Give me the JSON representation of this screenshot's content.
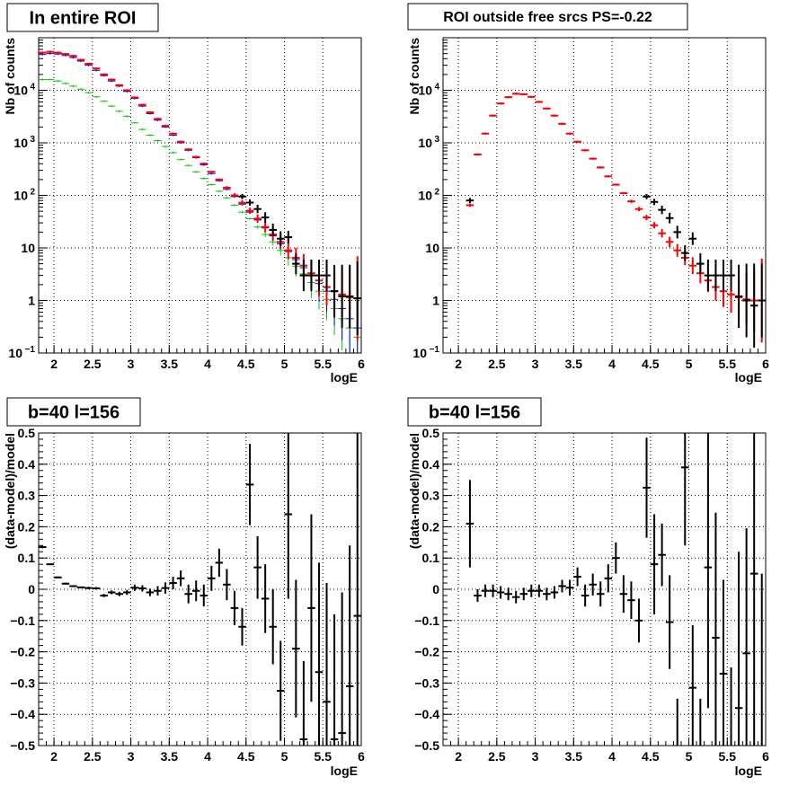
{
  "chart_data": [
    {
      "type": "scatter",
      "title": "In entire ROI",
      "xlabel": "logE",
      "ylabel": "Nb of counts",
      "xlim": [
        1.8,
        6.0
      ],
      "ylim": [
        0.1,
        100000
      ],
      "yscale": "log",
      "grid": true,
      "xticks": [
        "2",
        "2.5",
        "3",
        "3.5",
        "4",
        "4.5",
        "5",
        "5.5",
        "6"
      ],
      "yticks": [
        {
          "value": 0.1,
          "base": "10",
          "exp": "−1"
        },
        {
          "value": 1,
          "text": "1"
        },
        {
          "value": 10,
          "text": "10"
        },
        {
          "value": 100,
          "base": "10",
          "exp": "2"
        },
        {
          "value": 1000,
          "base": "10",
          "exp": "3"
        },
        {
          "value": 10000,
          "base": "10",
          "exp": "4"
        }
      ],
      "series": [
        {
          "color": "#00cc00",
          "width": 1,
          "x": [
            1.85,
            1.95,
            2.05,
            2.15,
            2.25,
            2.35,
            2.45,
            2.55,
            2.65,
            2.75,
            2.85,
            2.95,
            3.05,
            3.15,
            3.25,
            3.35,
            3.45,
            3.55,
            3.65,
            3.75,
            3.85,
            3.95,
            4.05,
            4.15,
            4.25,
            4.35,
            4.45,
            4.55,
            4.65,
            4.75,
            4.85,
            4.95,
            5.05,
            5.15,
            5.25,
            5.35,
            5.45,
            5.55,
            5.65,
            5.75,
            5.85,
            5.95
          ],
          "y": [
            16000,
            16000,
            15000,
            13500,
            12000,
            10500,
            9000,
            7500,
            6200,
            5000,
            4000,
            3200,
            2400,
            1800,
            1400,
            1100,
            850,
            650,
            480,
            370,
            280,
            210,
            160,
            120,
            90,
            65,
            48,
            36,
            25,
            18,
            13,
            9,
            6.5,
            4.5,
            3.2,
            2.2,
            1.5,
            1.05,
            0.7,
            0.45,
            0.3,
            0.2
          ],
          "yerr": [
            0.02,
            0.02,
            0.02,
            0.02,
            0.02,
            0.02,
            0.02,
            0.02,
            0.02,
            0.02,
            0.02,
            0.02,
            0.02,
            0.02,
            0.02,
            0.02,
            0.02,
            0.02,
            0.02,
            0.02,
            0.02,
            0.02,
            0.02,
            0.02,
            0.02,
            0.02,
            0.02,
            0.02,
            0.03,
            0.05,
            0.07,
            0.1,
            0.15,
            0.2,
            0.25,
            0.3,
            0.35,
            0.4,
            0.5,
            0.6,
            0.8,
            1.0
          ]
        },
        {
          "color": "#0000ff",
          "width": 1,
          "x": [
            1.85,
            1.95,
            2.05,
            2.15,
            2.25,
            2.35,
            2.45,
            2.55,
            2.65,
            2.75,
            2.85,
            2.95,
            3.05,
            3.15,
            3.25,
            3.35,
            3.45,
            3.55,
            3.65,
            3.75,
            3.85,
            3.95,
            4.05,
            4.15,
            4.25,
            4.35,
            4.45,
            4.55,
            4.65,
            4.75,
            4.85,
            4.95,
            5.05,
            5.15,
            5.25,
            5.35,
            5.45,
            5.55,
            5.65,
            5.75,
            5.85,
            5.95
          ],
          "y": [
            48000,
            50000,
            49000,
            46000,
            42000,
            36000,
            30000,
            24000,
            19000,
            15000,
            12000,
            9500,
            7000,
            5000,
            3600,
            2700,
            2000,
            1400,
            1000,
            720,
            520,
            380,
            260,
            190,
            130,
            95,
            68,
            48,
            34,
            24,
            17,
            12,
            8.5,
            6,
            4.2,
            3,
            2.1,
            1.5,
            1.05,
            0.7,
            0.45,
            0.3
          ],
          "yerr": [
            0.02,
            0.02,
            0.02,
            0.02,
            0.02,
            0.02,
            0.02,
            0.02,
            0.02,
            0.02,
            0.02,
            0.02,
            0.02,
            0.02,
            0.02,
            0.02,
            0.02,
            0.02,
            0.02,
            0.02,
            0.02,
            0.02,
            0.02,
            0.02,
            0.02,
            0.02,
            0.02,
            0.02,
            0.03,
            0.05,
            0.07,
            0.1,
            0.15,
            0.2,
            0.25,
            0.3,
            0.35,
            0.4,
            0.5,
            0.6,
            0.8,
            1.0
          ]
        },
        {
          "color": "#ff0000",
          "width": 2,
          "x": [
            1.85,
            1.95,
            2.05,
            2.15,
            2.25,
            2.35,
            2.45,
            2.55,
            2.65,
            2.75,
            2.85,
            2.95,
            3.05,
            3.15,
            3.25,
            3.35,
            3.45,
            3.55,
            3.65,
            3.75,
            3.85,
            3.95,
            4.05,
            4.15,
            4.25,
            4.35,
            4.45,
            4.55,
            4.65,
            4.75,
            4.85,
            4.95,
            5.05,
            5.15,
            5.25,
            5.35,
            5.45,
            5.55,
            5.65,
            5.75,
            5.85,
            5.95
          ],
          "y": [
            52000,
            54000,
            52000,
            49000,
            45000,
            38000,
            32000,
            26000,
            20000,
            16000,
            12500,
            10000,
            7300,
            5300,
            3800,
            2850,
            2100,
            1500,
            1050,
            750,
            540,
            400,
            280,
            200,
            140,
            100,
            72,
            51,
            36,
            25,
            18,
            13,
            9,
            6.5,
            4.6,
            3.3,
            2.4,
            1.8,
            1.5,
            1.3,
            1.15,
            1.1
          ],
          "yerr": [
            0.02,
            0.02,
            0.02,
            0.02,
            0.02,
            0.02,
            0.02,
            0.02,
            0.02,
            0.02,
            0.02,
            0.02,
            0.02,
            0.02,
            0.02,
            0.02,
            0.02,
            0.02,
            0.02,
            0.02,
            0.02,
            0.02,
            0.02,
            0.02,
            0.03,
            0.04,
            0.05,
            0.06,
            0.08,
            0.1,
            0.12,
            0.14,
            0.16,
            0.19,
            0.22,
            0.26,
            0.3,
            0.35,
            0.4,
            0.5,
            0.6,
            0.8
          ]
        },
        {
          "color": "#000000",
          "width": 2,
          "x": [
            4.45,
            4.55,
            4.65,
            4.75,
            4.85,
            4.95,
            5.05,
            5.15,
            5.25,
            5.35,
            5.45,
            5.55,
            5.65,
            5.75,
            5.85,
            5.95
          ],
          "y": [
            95,
            73,
            55,
            38,
            22,
            15,
            16,
            5,
            3,
            3,
            3,
            3,
            1.5,
            1.2,
            1.2,
            1.1
          ],
          "yerr": [
            0.05,
            0.06,
            0.08,
            0.1,
            0.12,
            0.14,
            0.12,
            0.2,
            0.3,
            0.3,
            0.3,
            0.3,
            0.5,
            0.6,
            0.6,
            0.7
          ]
        }
      ]
    },
    {
      "type": "scatter",
      "title": "ROI outside free srcs PS=-0.22",
      "xlabel": "logE",
      "ylabel": "Nb of counts",
      "xlim": [
        1.8,
        6.0
      ],
      "ylim": [
        0.1,
        100000
      ],
      "yscale": "log",
      "grid": true,
      "xticks": [
        "2",
        "2.5",
        "3",
        "3.5",
        "4",
        "4.5",
        "5",
        "5.5",
        "6"
      ],
      "yticks": [
        {
          "value": 0.1,
          "base": "10",
          "exp": "−1"
        },
        {
          "value": 1,
          "text": "1"
        },
        {
          "value": 10,
          "text": "10"
        },
        {
          "value": 100,
          "base": "10",
          "exp": "2"
        },
        {
          "value": 1000,
          "base": "10",
          "exp": "3"
        },
        {
          "value": 10000,
          "base": "10",
          "exp": "4"
        }
      ],
      "series": [
        {
          "color": "#ff0000",
          "width": 2,
          "x": [
            2.15,
            2.25,
            2.35,
            2.45,
            2.55,
            2.65,
            2.75,
            2.85,
            2.95,
            3.05,
            3.15,
            3.25,
            3.35,
            3.45,
            3.55,
            3.65,
            3.75,
            3.85,
            3.95,
            4.05,
            4.15,
            4.25,
            4.35,
            4.45,
            4.55,
            4.65,
            4.75,
            4.85,
            4.95,
            5.05,
            5.15,
            5.25,
            5.35,
            5.45,
            5.55,
            5.65,
            5.75,
            5.85,
            5.95
          ],
          "y": [
            65,
            600,
            1500,
            3300,
            5600,
            7400,
            8600,
            8400,
            7500,
            6000,
            4500,
            3300,
            2300,
            1500,
            1050,
            720,
            500,
            340,
            230,
            160,
            110,
            77,
            55,
            38,
            27,
            19,
            13,
            9,
            6.5,
            4.6,
            3.3,
            2.4,
            1.8,
            1.5,
            1.3,
            1.15,
            1.05,
            1.0,
            1.0
          ],
          "yerr": [
            0.03,
            0.02,
            0.02,
            0.02,
            0.02,
            0.02,
            0.02,
            0.02,
            0.02,
            0.02,
            0.02,
            0.02,
            0.02,
            0.02,
            0.02,
            0.02,
            0.02,
            0.02,
            0.02,
            0.02,
            0.02,
            0.03,
            0.04,
            0.05,
            0.06,
            0.08,
            0.1,
            0.12,
            0.14,
            0.16,
            0.19,
            0.22,
            0.26,
            0.3,
            0.35,
            0.4,
            0.5,
            0.6,
            0.8
          ]
        },
        {
          "color": "#000000",
          "width": 2,
          "x": [
            2.15,
            4.45,
            4.55,
            4.65,
            4.75,
            4.85,
            4.95,
            5.05,
            5.15,
            5.25,
            5.35,
            5.45,
            5.55,
            5.65,
            5.75,
            5.85,
            5.95
          ],
          "y": [
            80,
            95,
            75,
            53,
            37,
            20,
            8,
            15,
            5,
            3,
            3,
            3,
            3,
            1.2,
            1.0,
            0.8,
            1.0
          ],
          "yerr": [
            0.05,
            0.05,
            0.06,
            0.08,
            0.1,
            0.12,
            0.15,
            0.12,
            0.2,
            0.3,
            0.3,
            0.3,
            0.3,
            0.6,
            0.7,
            0.8,
            0.7
          ]
        }
      ]
    },
    {
      "type": "scatter",
      "title": "b=40 l=156",
      "xlabel": "logE",
      "ylabel": "(data-model)/model",
      "xlim": [
        1.8,
        6.0
      ],
      "ylim": [
        -0.5,
        0.5
      ],
      "grid": true,
      "xticks": [
        "2",
        "2.5",
        "3",
        "3.5",
        "4",
        "4.5",
        "5",
        "5.5",
        "6"
      ],
      "yticks": [
        "−0.5",
        "−0.4",
        "−0.3",
        "−0.2",
        "−0.1",
        "0",
        "0.1",
        "0.2",
        "0.3",
        "0.4",
        "0.5"
      ],
      "series": [
        {
          "color": "#000000",
          "width": 2,
          "x": [
            1.85,
            1.95,
            2.05,
            2.15,
            2.25,
            2.35,
            2.45,
            2.55,
            2.65,
            2.75,
            2.85,
            2.95,
            3.05,
            3.15,
            3.25,
            3.35,
            3.45,
            3.55,
            3.65,
            3.75,
            3.85,
            3.95,
            4.05,
            4.15,
            4.25,
            4.35,
            4.45,
            4.55,
            4.65,
            4.75,
            4.85,
            4.95,
            5.05,
            5.15,
            5.25,
            5.35,
            5.45,
            5.55,
            5.65,
            5.75,
            5.85,
            5.95
          ],
          "y": [
            0.135,
            0.08,
            0.038,
            0.018,
            0.01,
            0.006,
            0.004,
            0.003,
            -0.02,
            -0.01,
            -0.015,
            -0.01,
            0.005,
            0.003,
            -0.01,
            -0.005,
            0.004,
            0.02,
            0.035,
            -0.015,
            -0.005,
            -0.02,
            0.035,
            0.085,
            0.015,
            -0.06,
            -0.12,
            0.335,
            0.07,
            -0.03,
            -0.12,
            -0.325,
            0.24,
            -0.19,
            -0.48,
            -0.06,
            -0.265,
            -0.36,
            -0.48,
            -0.46,
            -0.31,
            -0.085
          ],
          "yerr": [
            0.004,
            0.003,
            0.003,
            0.003,
            0.003,
            0.003,
            0.004,
            0.004,
            0.005,
            0.006,
            0.007,
            0.008,
            0.01,
            0.01,
            0.012,
            0.015,
            0.018,
            0.02,
            0.025,
            0.03,
            0.033,
            0.035,
            0.04,
            0.045,
            0.05,
            0.055,
            0.06,
            0.13,
            0.1,
            0.11,
            0.12,
            0.16,
            0.27,
            0.22,
            0.25,
            0.3,
            0.35,
            0.38,
            0.4,
            0.45,
            0.45,
            0.6
          ]
        }
      ]
    },
    {
      "type": "scatter",
      "title": "b=40 l=156",
      "xlabel": "logE",
      "ylabel": "(data-model)/model",
      "xlim": [
        1.8,
        6.0
      ],
      "ylim": [
        -0.5,
        0.5
      ],
      "grid": true,
      "xticks": [
        "2",
        "2.5",
        "3",
        "3.5",
        "4",
        "4.5",
        "5",
        "5.5",
        "6"
      ],
      "yticks": [
        "−0.5",
        "−0.4",
        "−0.3",
        "−0.2",
        "−0.1",
        "0",
        "0.1",
        "0.2",
        "0.3",
        "0.4",
        "0.5"
      ],
      "series": [
        {
          "color": "#000000",
          "width": 2,
          "x": [
            2.15,
            2.25,
            2.35,
            2.45,
            2.55,
            2.65,
            2.75,
            2.85,
            2.95,
            3.05,
            3.15,
            3.25,
            3.35,
            3.45,
            3.55,
            3.65,
            3.75,
            3.85,
            3.95,
            4.05,
            4.15,
            4.25,
            4.35,
            4.45,
            4.55,
            4.65,
            4.75,
            4.85,
            4.95,
            5.05,
            5.15,
            5.25,
            5.35,
            5.45,
            5.55,
            5.65,
            5.75,
            5.85,
            5.95
          ],
          "y": [
            0.21,
            -0.02,
            -0.005,
            -0.005,
            -0.01,
            -0.015,
            -0.025,
            -0.015,
            -0.005,
            -0.005,
            -0.015,
            -0.01,
            0.01,
            0.005,
            0.04,
            -0.02,
            0.015,
            -0.015,
            0.035,
            0.1,
            -0.015,
            -0.035,
            -0.1,
            0.325,
            0.08,
            0.11,
            -0.105,
            -0.55,
            0.39,
            -0.315,
            -0.55,
            0.07,
            -0.155,
            -0.27,
            -0.55,
            -0.38,
            -0.205,
            0.05,
            -0.55
          ],
          "yerr": [
            0.14,
            0.02,
            0.02,
            0.02,
            0.02,
            0.02,
            0.02,
            0.02,
            0.02,
            0.02,
            0.02,
            0.02,
            0.02,
            0.025,
            0.03,
            0.035,
            0.035,
            0.04,
            0.045,
            0.05,
            0.06,
            0.06,
            0.07,
            0.16,
            0.16,
            0.1,
            0.15,
            0.2,
            0.25,
            0.2,
            0.2,
            0.45,
            0.4,
            0.3,
            0.3,
            0.5,
            0.4,
            0.6,
            0.6
          ]
        }
      ]
    }
  ]
}
